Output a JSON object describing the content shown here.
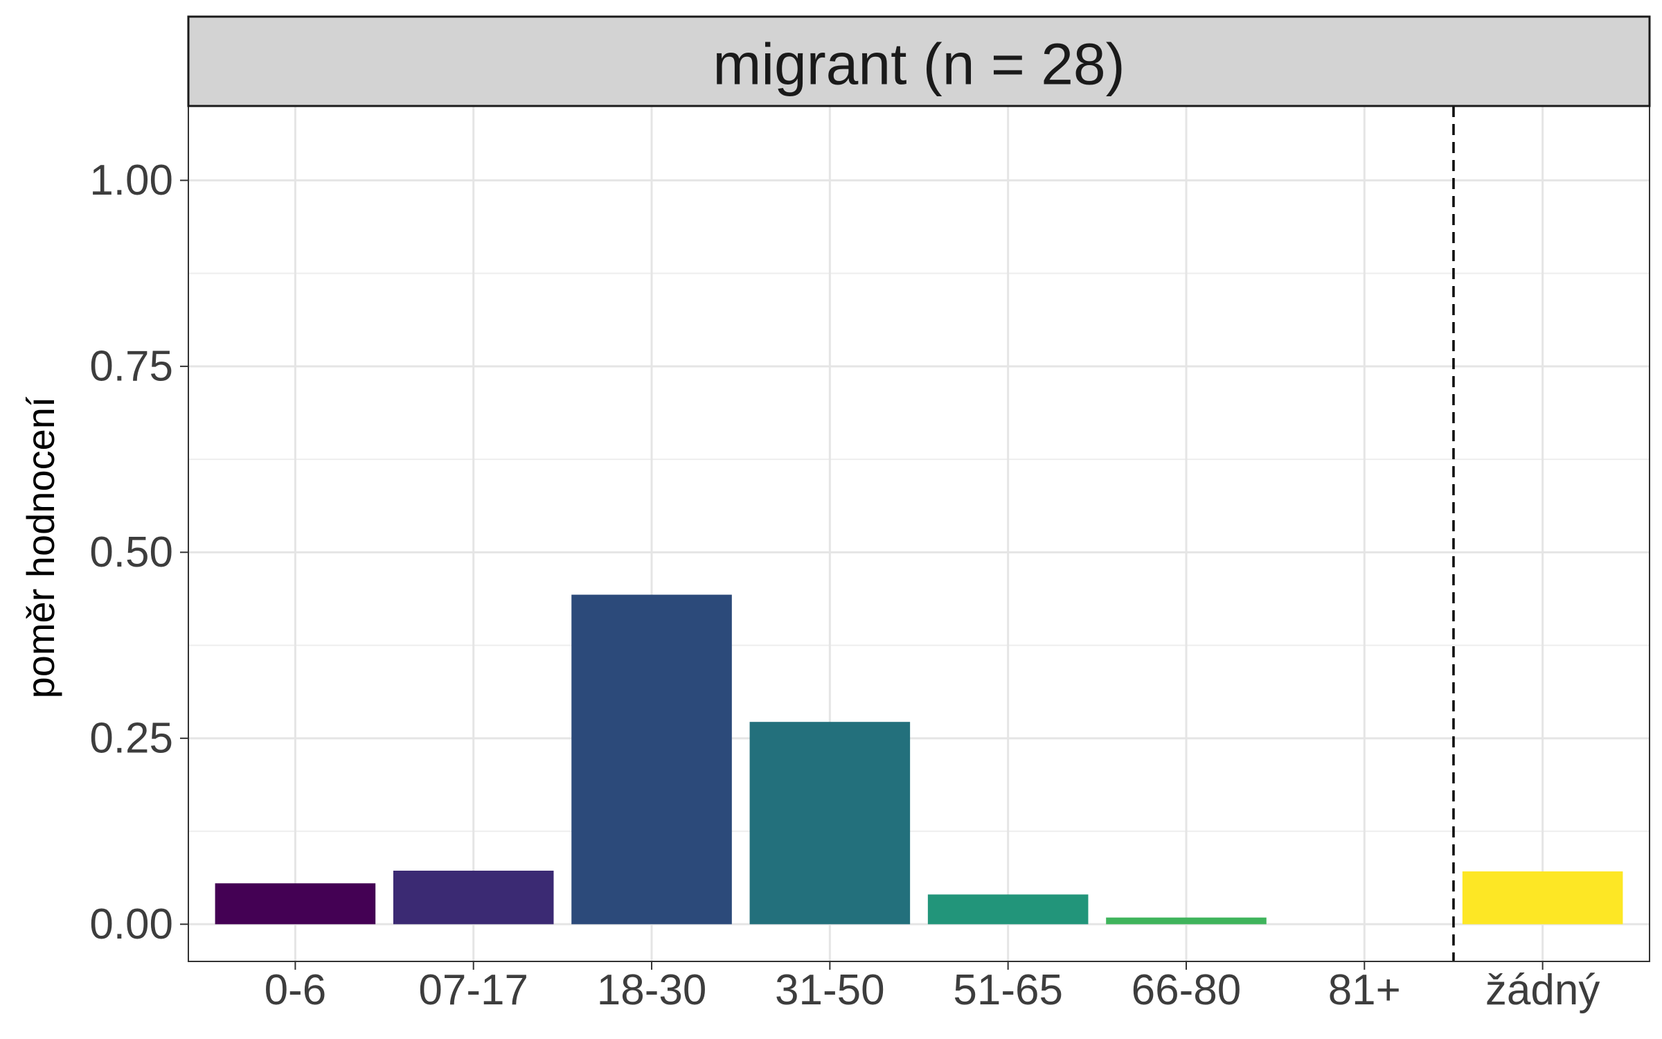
{
  "chart_data": {
    "type": "bar",
    "facet_title": "migrant (n = 28)",
    "categories": [
      "0-6",
      "07-17",
      "18-30",
      "31-50",
      "51-65",
      "66-80",
      "81+",
      "žádný"
    ],
    "values": [
      0.055,
      0.072,
      0.443,
      0.272,
      0.04,
      0.009,
      0.0,
      0.071
    ],
    "colors": [
      "#440154",
      "#3b2a73",
      "#2c4a7a",
      "#23707c",
      "#22957a",
      "#3fb45c",
      "#9ed341",
      "#fde725"
    ],
    "xlabel": "",
    "ylabel": "poměr hodnocení",
    "ylim": [
      -0.05,
      1.1
    ],
    "y_ticks": [
      0.0,
      0.25,
      0.5,
      0.75,
      1.0
    ],
    "y_tick_labels": [
      "0.00",
      "0.25",
      "0.50",
      "0.75",
      "1.00"
    ],
    "reference_line": {
      "after_category": "81+",
      "style": "dashed",
      "color": "#000000"
    },
    "grid": true,
    "legend": "none"
  }
}
